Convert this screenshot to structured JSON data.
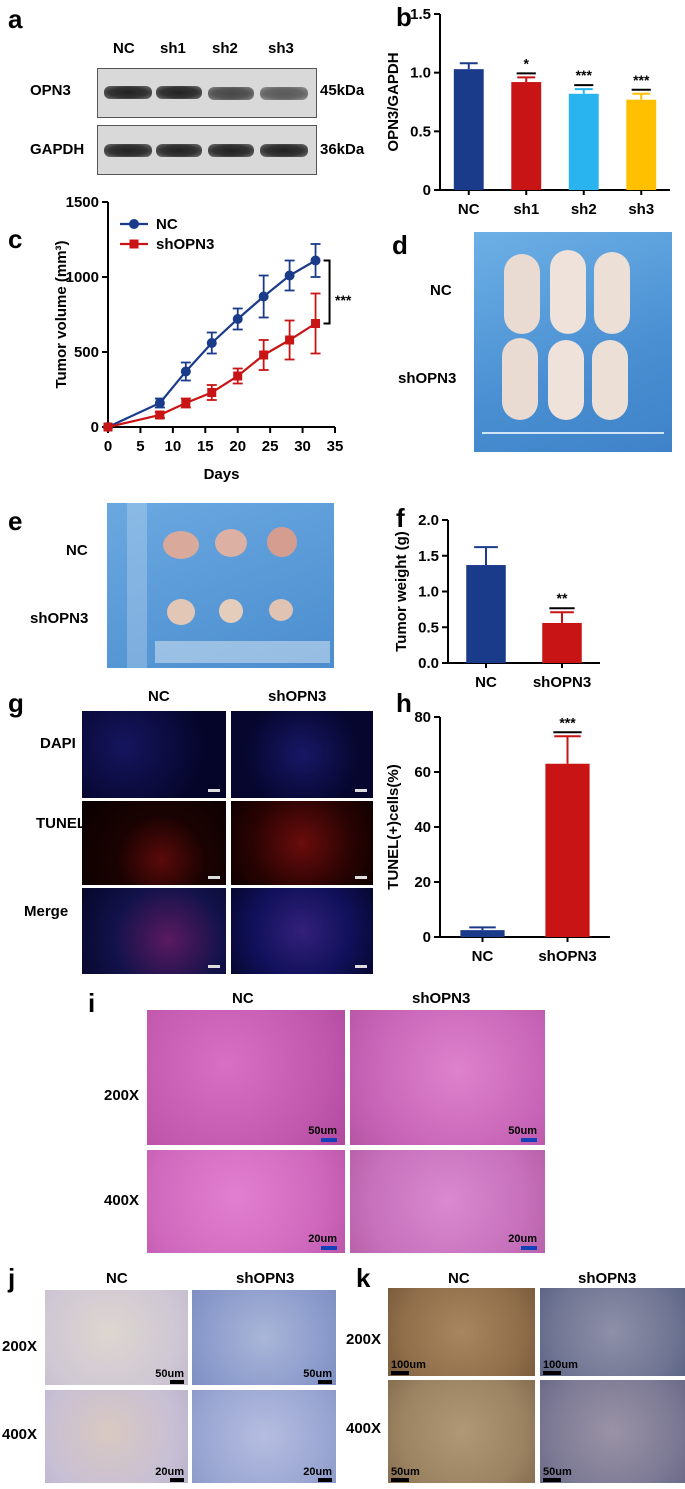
{
  "panels": {
    "a": {
      "letter": "a",
      "lanes": [
        "NC",
        "sh1",
        "sh2",
        "sh3"
      ],
      "rows": [
        {
          "protein": "OPN3",
          "size": "45kDa"
        },
        {
          "protein": "GAPDH",
          "size": "36kDa"
        }
      ]
    },
    "c": {
      "letter": "c",
      "significance": "***"
    },
    "d": {
      "letter": "d",
      "group_labels": [
        "NC",
        "shOPN3"
      ]
    },
    "e": {
      "letter": "e",
      "group_labels": [
        "NC",
        "shOPN3"
      ]
    },
    "g": {
      "letter": "g",
      "columns": [
        "NC",
        "shOPN3"
      ],
      "rows": [
        "DAPI",
        "TUNEL",
        "Merge"
      ]
    },
    "i": {
      "letter": "i",
      "columns": [
        "NC",
        "shOPN3"
      ],
      "rows": [
        "200X",
        "400X"
      ],
      "scales": [
        "50um",
        "50um",
        "20um",
        "20um"
      ]
    },
    "j": {
      "letter": "j",
      "columns": [
        "NC",
        "shOPN3"
      ],
      "rows": [
        "200X",
        "400X"
      ],
      "scales": [
        "50um",
        "50um",
        "20um",
        "20um"
      ]
    },
    "k": {
      "letter": "k",
      "columns": [
        "NC",
        "shOPN3"
      ],
      "rows": [
        "200X",
        "400X"
      ],
      "scales": [
        "100um",
        "100um",
        "50um",
        "50um"
      ]
    }
  },
  "chart_data": [
    {
      "id": "b",
      "letter": "b",
      "type": "bar",
      "categories": [
        "NC",
        "sh1",
        "sh2",
        "sh3"
      ],
      "values": [
        1.03,
        0.92,
        0.82,
        0.77
      ],
      "errors": [
        0.05,
        0.04,
        0.04,
        0.05
      ],
      "colors": [
        "#1a3a8a",
        "#c81414",
        "#29b4ef",
        "#ffc000"
      ],
      "significance": [
        "",
        "*",
        "***",
        "***"
      ],
      "ylabel": "OPN3/GAPDH",
      "ylim": [
        0,
        1.5
      ],
      "yticks": [
        "0",
        "0.5",
        "1.0",
        "1.5"
      ]
    },
    {
      "id": "c",
      "letter": "c",
      "type": "line",
      "x": [
        0,
        8,
        12,
        16,
        20,
        24,
        28,
        32
      ],
      "series": [
        {
          "name": "NC",
          "color": "#1a3a8a",
          "values": [
            0,
            160,
            370,
            560,
            720,
            870,
            1010,
            1110
          ],
          "errors": [
            0,
            30,
            60,
            70,
            70,
            140,
            100,
            110
          ]
        },
        {
          "name": "shOPN3",
          "color": "#c81414",
          "values": [
            0,
            80,
            160,
            230,
            340,
            480,
            580,
            690
          ],
          "errors": [
            0,
            20,
            30,
            50,
            50,
            100,
            130,
            200
          ]
        }
      ],
      "xlabel": "Days",
      "ylabel": "Tumor volume (mm³)",
      "xlim": [
        0,
        35
      ],
      "ylim": [
        0,
        1500
      ],
      "xticks": [
        "0",
        "5",
        "10",
        "15",
        "20",
        "25",
        "30",
        "35"
      ],
      "yticks": [
        "0",
        "500",
        "1000",
        "1500"
      ],
      "legend": "top-left"
    },
    {
      "id": "f",
      "letter": "f",
      "type": "bar",
      "categories": [
        "NC",
        "shOPN3"
      ],
      "values": [
        1.37,
        0.56
      ],
      "errors": [
        0.25,
        0.15
      ],
      "colors": [
        "#1a3a8a",
        "#c81414"
      ],
      "significance": [
        "",
        "**"
      ],
      "ylabel": "Tumor weight (g)",
      "ylim": [
        0,
        2.0
      ],
      "yticks": [
        "0.0",
        "0.5",
        "1.0",
        "1.5",
        "2.0"
      ]
    },
    {
      "id": "h",
      "letter": "h",
      "type": "bar",
      "categories": [
        "NC",
        "shOPN3"
      ],
      "values": [
        2.5,
        63
      ],
      "errors": [
        1,
        10
      ],
      "colors": [
        "#1a3a8a",
        "#c81414"
      ],
      "significance": [
        "",
        "***"
      ],
      "ylabel": "TUNEL(+)cells(%)",
      "ylim": [
        0,
        80
      ],
      "yticks": [
        "0",
        "20",
        "40",
        "60",
        "80"
      ]
    }
  ]
}
